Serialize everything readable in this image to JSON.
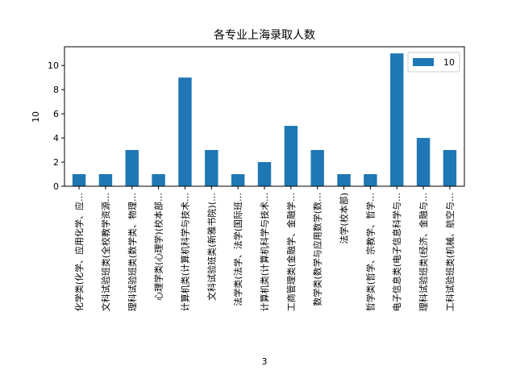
{
  "chart_data": {
    "type": "bar",
    "title": "各专业上海录取人数",
    "xlabel": "3",
    "ylabel": "10",
    "ylim": [
      0,
      11.55
    ],
    "yticks": [
      0,
      2,
      4,
      6,
      8,
      10
    ],
    "legend": {
      "position": "top-right",
      "label": "10"
    },
    "bar_color": "#1f77b4",
    "grid": false,
    "categories": [
      "化学类(化学、应用化学、应…",
      "文科试验班类(全校教学资源…",
      "理科试验班类(数学类、物理…",
      "心理学类(心理学)(校本部…",
      "计算机类(计算机科学与技术…",
      "文科试验班类(新雅书院)(…",
      "法学类(法学、法学(国际班…",
      "计算机类(计算机科学与技术…",
      "工商管理类(金融学、金融学…",
      "数学类(数学与应用数学(数…",
      "法学(校本部)",
      "哲学类(哲学、宗教学、哲学…",
      "电子信息类(电子信息科学与…",
      "理科试验班类(经济、金融与…",
      "工科试验班类(机械、航空与…"
    ],
    "values": [
      1,
      1,
      3,
      1,
      9,
      3,
      1,
      2,
      5,
      3,
      1,
      1,
      11,
      4,
      3
    ]
  }
}
